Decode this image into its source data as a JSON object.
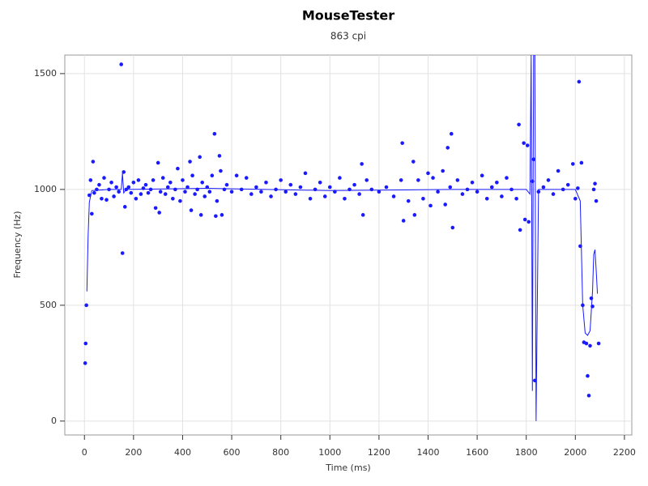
{
  "chart_data": {
    "type": "scatter",
    "title": "MouseTester",
    "subtitle": "863 cpi",
    "x_label": "Time (ms)",
    "y_label": "Frequency (Hz)",
    "color": "#1a1aff",
    "grid": true,
    "xlim": [
      -80,
      2230
    ],
    "ylim": [
      -60,
      1580
    ],
    "xticks": [
      0,
      200,
      400,
      600,
      800,
      1000,
      1200,
      1400,
      1600,
      1800,
      2000,
      2200
    ],
    "yticks": [
      0,
      500,
      1000,
      1500
    ],
    "scatter": {
      "x": [
        3,
        5,
        8,
        20,
        25,
        30,
        35,
        40,
        50,
        60,
        70,
        80,
        90,
        100,
        110,
        120,
        130,
        140,
        150,
        155,
        160,
        165,
        170,
        180,
        190,
        200,
        210,
        220,
        230,
        240,
        250,
        260,
        270,
        280,
        290,
        300,
        305,
        310,
        320,
        330,
        340,
        350,
        360,
        370,
        380,
        390,
        400,
        410,
        420,
        430,
        435,
        440,
        450,
        460,
        470,
        475,
        480,
        490,
        500,
        510,
        520,
        530,
        535,
        540,
        550,
        555,
        560,
        570,
        580,
        600,
        620,
        640,
        660,
        680,
        700,
        720,
        740,
        760,
        780,
        800,
        820,
        840,
        860,
        880,
        900,
        920,
        940,
        960,
        980,
        1000,
        1020,
        1040,
        1060,
        1080,
        1100,
        1120,
        1130,
        1135,
        1150,
        1170,
        1200,
        1230,
        1260,
        1290,
        1295,
        1300,
        1320,
        1340,
        1345,
        1360,
        1380,
        1400,
        1410,
        1420,
        1440,
        1460,
        1470,
        1480,
        1490,
        1495,
        1500,
        1520,
        1540,
        1560,
        1580,
        1600,
        1620,
        1640,
        1660,
        1680,
        1700,
        1720,
        1740,
        1760,
        1770,
        1775,
        1790,
        1795,
        1805,
        1810,
        1825,
        1830,
        1835,
        1850,
        1870,
        1890,
        1910,
        1930,
        1950,
        1970,
        1990,
        2000,
        2010,
        2015,
        2020,
        2025,
        2030,
        2035,
        2045,
        2050,
        2055,
        2060,
        2065,
        2070,
        2075,
        2080,
        2085,
        2095
      ],
      "y": [
        250,
        335,
        500,
        975,
        1040,
        895,
        1120,
        985,
        1000,
        1020,
        960,
        1050,
        955,
        1000,
        1030,
        970,
        1010,
        990,
        1540,
        725,
        1075,
        925,
        1000,
        1010,
        985,
        1030,
        960,
        1040,
        980,
        1005,
        1020,
        985,
        1000,
        1040,
        920,
        1115,
        900,
        990,
        1050,
        980,
        1010,
        1030,
        960,
        1000,
        1090,
        950,
        1040,
        990,
        1010,
        1120,
        910,
        1060,
        980,
        1000,
        1140,
        890,
        1030,
        970,
        1010,
        990,
        1060,
        1240,
        885,
        950,
        1145,
        1080,
        890,
        1000,
        1020,
        990,
        1060,
        1000,
        1050,
        980,
        1010,
        990,
        1030,
        970,
        1000,
        1040,
        990,
        1020,
        980,
        1010,
        1070,
        960,
        1000,
        1030,
        970,
        1010,
        990,
        1050,
        960,
        1000,
        1020,
        980,
        1110,
        890,
        1040,
        1000,
        990,
        1010,
        970,
        1040,
        1200,
        865,
        950,
        1120,
        890,
        1040,
        960,
        1070,
        930,
        1050,
        990,
        1080,
        935,
        1180,
        1010,
        1240,
        835,
        1040,
        980,
        1000,
        1030,
        990,
        1060,
        960,
        1010,
        1030,
        970,
        1050,
        1000,
        960,
        1280,
        825,
        1200,
        870,
        1190,
        860,
        1035,
        1130,
        175,
        990,
        1010,
        1040,
        980,
        1080,
        1000,
        1020,
        1110,
        960,
        1005,
        1465,
        755,
        1115,
        500,
        340,
        335,
        195,
        110,
        325,
        530,
        495,
        1000,
        1025,
        950,
        335
      ]
    },
    "line": {
      "x": [
        10,
        15,
        20,
        30,
        100,
        150,
        155,
        160,
        170,
        500,
        1000,
        1500,
        1800,
        1815,
        1820,
        1825,
        1830,
        1835,
        1840,
        1850,
        1900,
        2000,
        2020,
        2030,
        2040,
        2050,
        2060,
        2070,
        2075,
        2080,
        2085,
        2090
      ],
      "y": [
        560,
        800,
        945,
        995,
        1000,
        1000,
        1070,
        985,
        1000,
        1005,
        995,
        1000,
        1000,
        980,
        1580,
        130,
        1580,
        1580,
        0,
        1000,
        1000,
        1000,
        950,
        500,
        380,
        370,
        390,
        560,
        720,
        740,
        650,
        550
      ]
    }
  }
}
